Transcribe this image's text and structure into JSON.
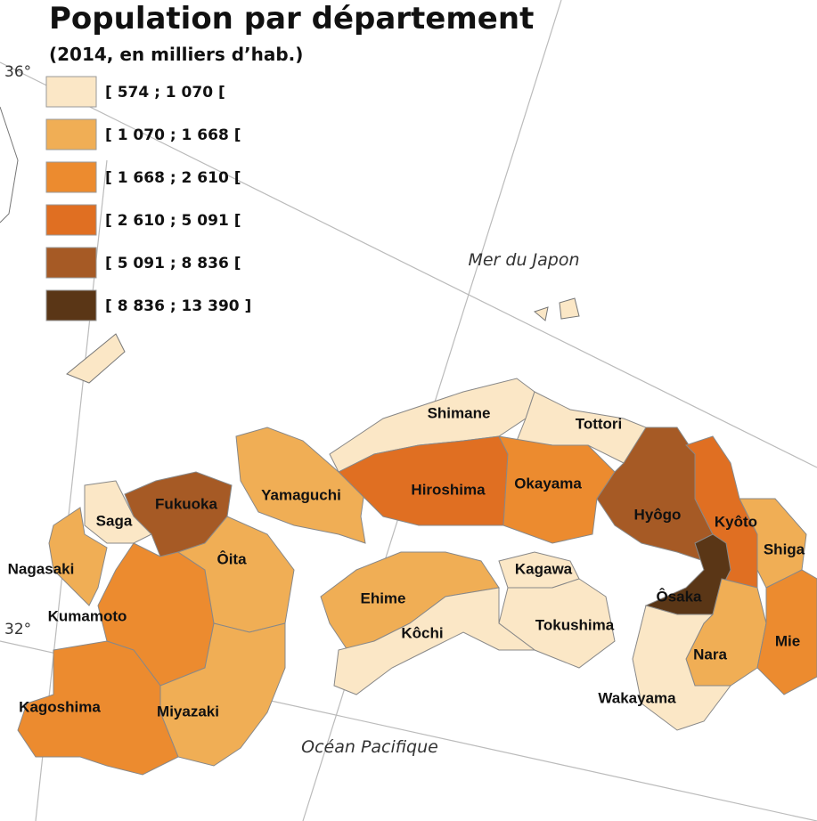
{
  "title": "Population par département",
  "subtitle": "(2014, en milliers d’hab.)",
  "legend": [
    {
      "label": "[ 574 ; 1 070 [",
      "color": "#fbe7c6"
    },
    {
      "label": "[ 1 070 ; 1 668 [",
      "color": "#f0ae55"
    },
    {
      "label": "[ 1 668 ; 2 610 [",
      "color": "#ec8b2f"
    },
    {
      "label": "[ 2 610 ; 5 091 [",
      "color": "#e06f22"
    },
    {
      "label": "[ 5 091 ; 8 836 [",
      "color": "#a65a25"
    },
    {
      "label": "[ 8 836 ; 13 390 ]",
      "color": "#5a3616"
    }
  ],
  "seas": [
    "Mer du Japon",
    "Océan Pacifique"
  ],
  "latitudes": [
    "36°",
    "32°"
  ],
  "prefectures": [
    {
      "name": "Shimane",
      "color": "#fbe7c6"
    },
    {
      "name": "Tottori",
      "color": "#fbe7c6"
    },
    {
      "name": "Yamaguchi",
      "color": "#f0ae55"
    },
    {
      "name": "Hiroshima",
      "color": "#e06f22"
    },
    {
      "name": "Okayama",
      "color": "#ec8b2f"
    },
    {
      "name": "Hyôgo",
      "color": "#a65a25"
    },
    {
      "name": "Kyôto",
      "color": "#e06f22"
    },
    {
      "name": "Shiga",
      "color": "#f0ae55"
    },
    {
      "name": "Ôsaka",
      "color": "#5a3616"
    },
    {
      "name": "Nara",
      "color": "#f0ae55"
    },
    {
      "name": "Mie",
      "color": "#ec8b2f"
    },
    {
      "name": "Wakayama",
      "color": "#fbe7c6"
    },
    {
      "name": "Kagawa",
      "color": "#fbe7c6"
    },
    {
      "name": "Tokushima",
      "color": "#fbe7c6"
    },
    {
      "name": "Ehime",
      "color": "#f0ae55"
    },
    {
      "name": "Kôchi",
      "color": "#fbe7c6"
    },
    {
      "name": "Fukuoka",
      "color": "#a65a25"
    },
    {
      "name": "Saga",
      "color": "#fbe7c6"
    },
    {
      "name": "Nagasaki",
      "color": "#f0ae55"
    },
    {
      "name": "Kumamoto",
      "color": "#ec8b2f"
    },
    {
      "name": "Ôita",
      "color": "#f0ae55"
    },
    {
      "name": "Miyazaki",
      "color": "#f0ae55"
    },
    {
      "name": "Kagoshima",
      "color": "#ec8b2f"
    }
  ]
}
